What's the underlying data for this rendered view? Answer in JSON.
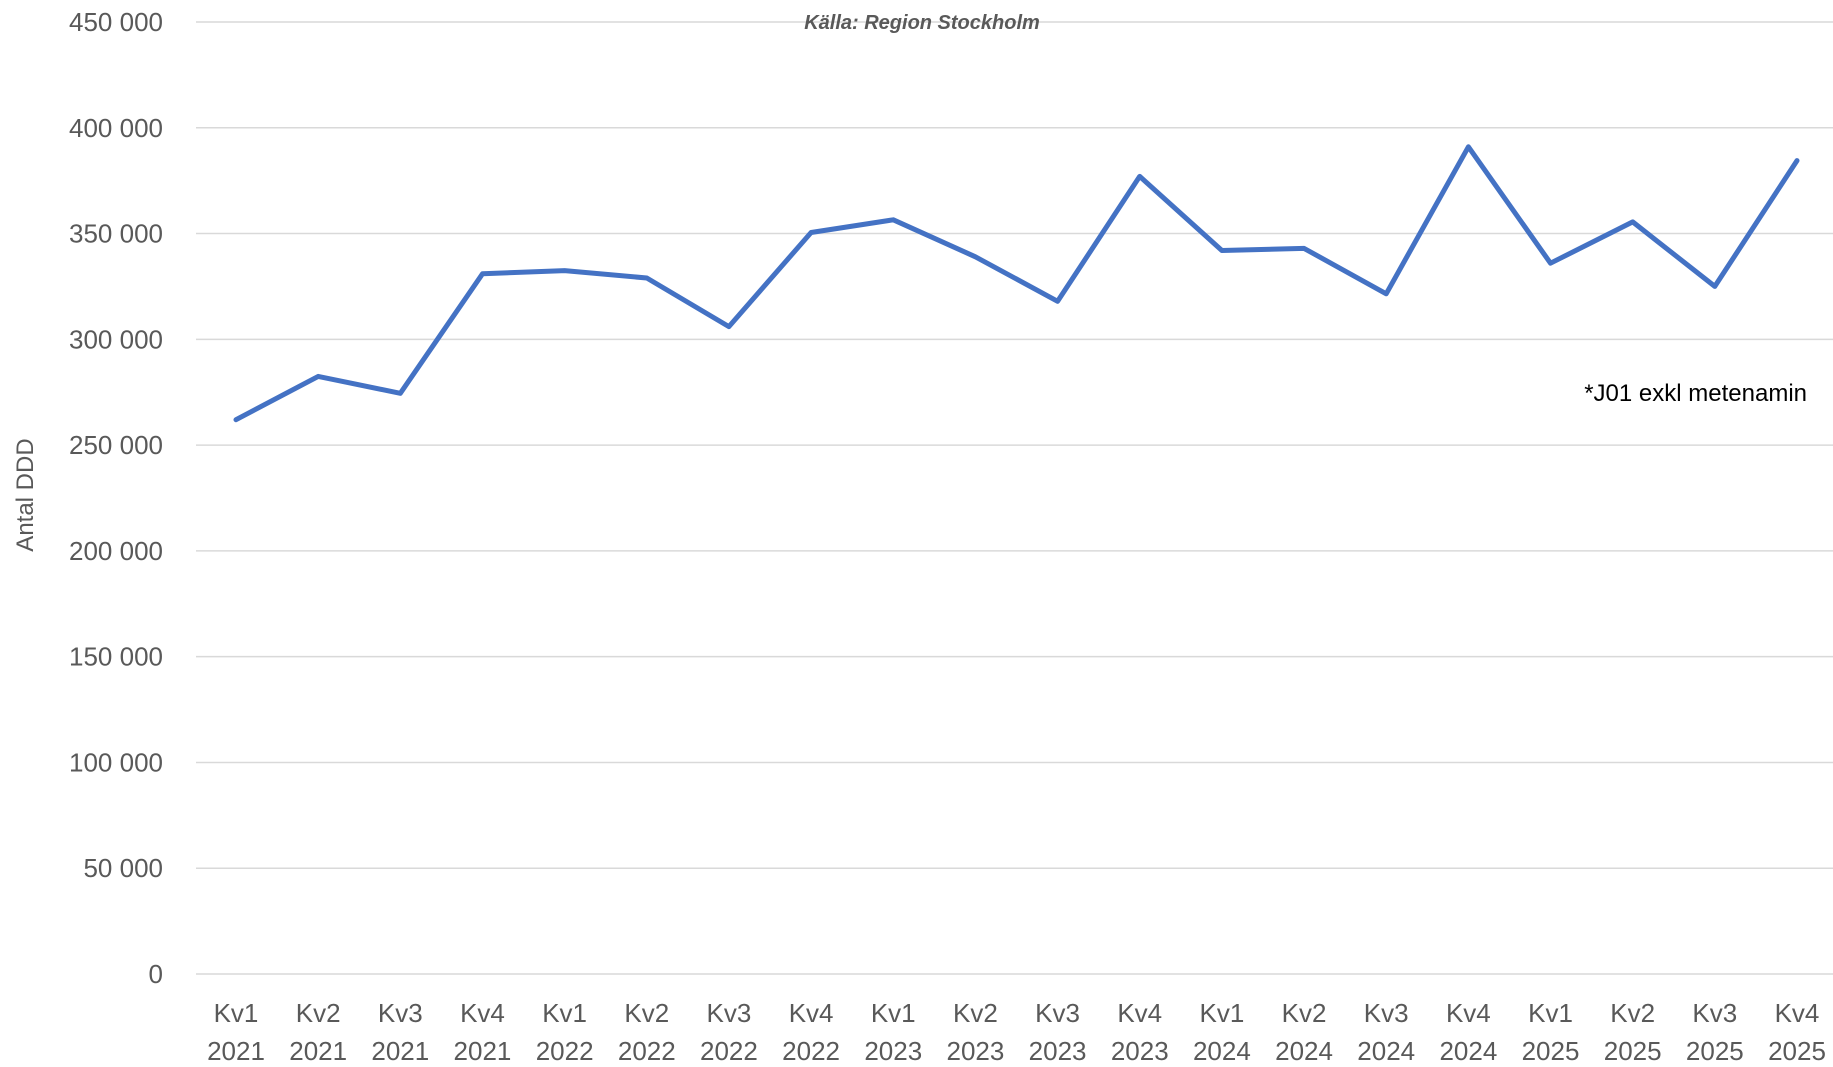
{
  "chart_data": {
    "type": "line",
    "title": "",
    "source": "Källa: Region Stockholm",
    "annotation": "*J01 exkl metenamin",
    "xlabel": "",
    "ylabel": "Antal DDD",
    "ylim": [
      0,
      450000
    ],
    "yticks": [
      "0",
      "50 000",
      "100 000",
      "150 000",
      "200 000",
      "250 000",
      "300 000",
      "350 000",
      "400 000",
      "450 000"
    ],
    "grid": true,
    "legend": "none",
    "line_color": "#4472c4",
    "categories": [
      {
        "quarter": "Kv1",
        "year": "2021"
      },
      {
        "quarter": "Kv2",
        "year": "2021"
      },
      {
        "quarter": "Kv3",
        "year": "2021"
      },
      {
        "quarter": "Kv4",
        "year": "2021"
      },
      {
        "quarter": "Kv1",
        "year": "2022"
      },
      {
        "quarter": "Kv2",
        "year": "2022"
      },
      {
        "quarter": "Kv3",
        "year": "2022"
      },
      {
        "quarter": "Kv4",
        "year": "2022"
      },
      {
        "quarter": "Kv1",
        "year": "2023"
      },
      {
        "quarter": "Kv2",
        "year": "2023"
      },
      {
        "quarter": "Kv3",
        "year": "2023"
      },
      {
        "quarter": "Kv4",
        "year": "2023"
      },
      {
        "quarter": "Kv1",
        "year": "2024"
      },
      {
        "quarter": "Kv2",
        "year": "2024"
      },
      {
        "quarter": "Kv3",
        "year": "2024"
      },
      {
        "quarter": "Kv4",
        "year": "2024"
      },
      {
        "quarter": "Kv1",
        "year": "2025"
      },
      {
        "quarter": "Kv2",
        "year": "2025"
      },
      {
        "quarter": "Kv3",
        "year": "2025"
      },
      {
        "quarter": "Kv4",
        "year": "2025"
      }
    ],
    "series": [
      {
        "values": [
          262000,
          282500,
          274500,
          331000,
          332500,
          329000,
          306000,
          350500,
          356500,
          339000,
          318000,
          377000,
          342000,
          343000,
          321500,
          391000,
          336000,
          355500,
          325000,
          384500
        ]
      }
    ]
  }
}
